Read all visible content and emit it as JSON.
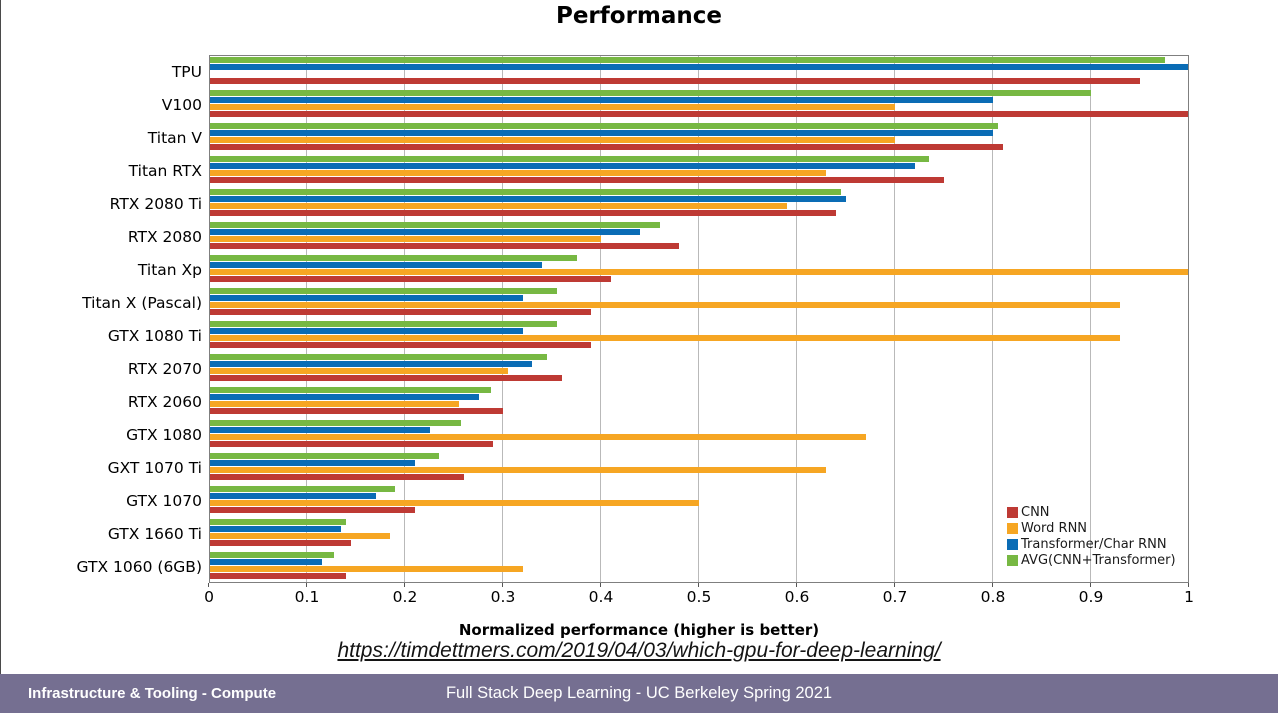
{
  "chart_data": {
    "type": "bar",
    "orientation": "horizontal",
    "title": "Performance",
    "xlabel": "Normalized performance (higher is better)",
    "xlim": [
      0,
      1
    ],
    "xticks": [
      "0",
      "0.1",
      "0.2",
      "0.3",
      "0.4",
      "0.5",
      "0.6",
      "0.7",
      "0.8",
      "0.9",
      "1"
    ],
    "grid": "vertical",
    "legend_position": "lower right",
    "categories": [
      "TPU",
      "V100",
      "Titan V",
      "Titan RTX",
      "RTX 2080 Ti",
      "RTX 2080",
      "Titan Xp",
      "Titan X (Pascal)",
      "GTX 1080 Ti",
      "RTX 2070",
      "RTX 2060",
      "GTX 1080",
      "GXT 1070 Ti",
      "GTX 1070",
      "GTX 1660 Ti",
      "GTX 1060 (6GB)"
    ],
    "series": [
      {
        "name": "CNN",
        "color": "#BE3A34",
        "values": [
          0.95,
          1.0,
          0.81,
          0.75,
          0.64,
          0.48,
          0.41,
          0.39,
          0.39,
          0.36,
          0.3,
          0.29,
          0.26,
          0.21,
          0.145,
          0.14
        ]
      },
      {
        "name": "Word RNN",
        "color": "#F6A623",
        "values": [
          null,
          0.7,
          0.7,
          0.63,
          0.59,
          0.4,
          1.0,
          0.93,
          0.93,
          0.305,
          0.255,
          0.67,
          0.63,
          0.5,
          0.185,
          0.32
        ]
      },
      {
        "name": "Transformer/Char RNN",
        "color": "#0A6CB5",
        "values": [
          1.0,
          0.8,
          0.8,
          0.72,
          0.65,
          0.44,
          0.34,
          0.32,
          0.32,
          0.33,
          0.275,
          0.225,
          0.21,
          0.17,
          0.135,
          0.115
        ]
      },
      {
        "name": "AVG(CNN+Transformer)",
        "color": "#77B843",
        "values": [
          0.975,
          0.9,
          0.805,
          0.735,
          0.645,
          0.46,
          0.375,
          0.355,
          0.355,
          0.345,
          0.2875,
          0.2575,
          0.235,
          0.19,
          0.14,
          0.1275
        ]
      }
    ]
  },
  "source_link": {
    "text": "https://timdettmers.com/2019/04/03/which-gpu-for-deep-learning/"
  },
  "footer": {
    "left": "Infrastructure & Tooling - Compute",
    "center": "Full Stack Deep Learning - UC Berkeley Spring 2021",
    "bg_color": "#756F91"
  }
}
